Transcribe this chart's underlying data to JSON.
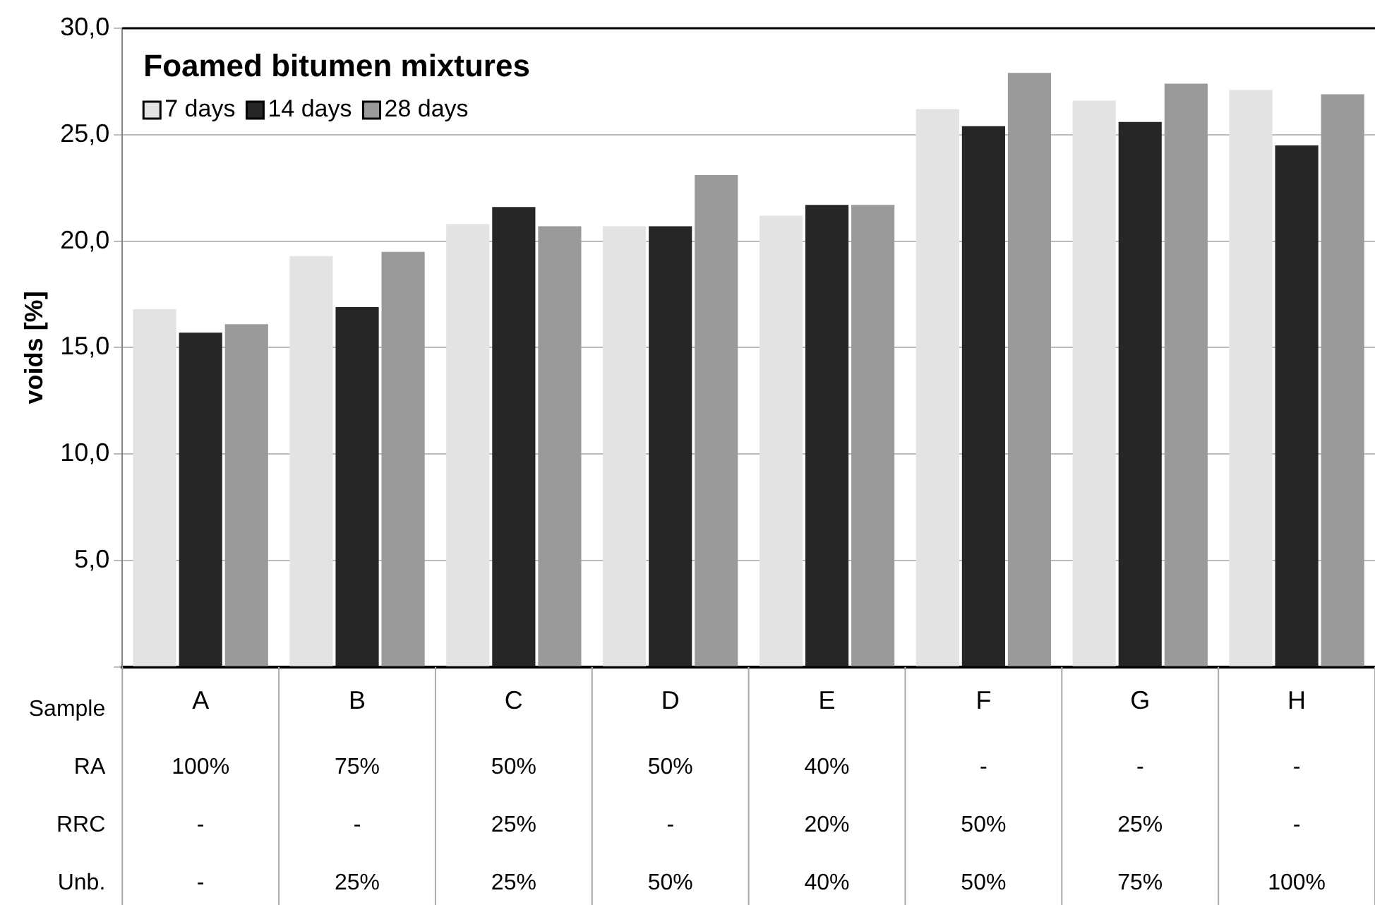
{
  "chart_data": {
    "type": "bar",
    "title": "Foamed bitumen mixtures",
    "ylabel": "voids [%]",
    "categories": [
      "A",
      "B",
      "C",
      "D",
      "E",
      "F",
      "G",
      "H"
    ],
    "series": [
      {
        "name": "7 days",
        "color": "#e3e3e3",
        "values": [
          16.8,
          19.3,
          20.8,
          20.7,
          21.2,
          26.2,
          26.6,
          27.1
        ]
      },
      {
        "name": "14 days",
        "color": "#262626",
        "values": [
          15.7,
          16.9,
          21.6,
          20.7,
          21.7,
          25.4,
          25.6,
          24.5
        ]
      },
      {
        "name": "28 days",
        "color": "#9a9a9a",
        "values": [
          16.1,
          19.5,
          20.7,
          23.1,
          21.7,
          27.9,
          27.4,
          26.9
        ]
      }
    ],
    "ylim": [
      0,
      30
    ],
    "yticks": [
      {
        "value": 0,
        "label": null
      },
      {
        "value": 5,
        "label": "5,0"
      },
      {
        "value": 10,
        "label": "10,0"
      },
      {
        "value": 15,
        "label": "15,0"
      },
      {
        "value": 20,
        "label": "20,0"
      },
      {
        "value": 25,
        "label": "25,0"
      },
      {
        "value": 30,
        "label": "30,0"
      }
    ],
    "grid": "y",
    "legend": "top left",
    "annotations": [
      "Sample",
      "RA",
      "100%",
      "75%",
      "50%",
      "50%",
      "40%",
      "-",
      "-",
      "-",
      "RRC",
      "-",
      "-",
      "25%",
      "-",
      "20%",
      "50%",
      "25%",
      "-",
      "Unb.",
      "-",
      "25%",
      "25%",
      "50%",
      "40%",
      "50%",
      "75%",
      "100%"
    ]
  }
}
